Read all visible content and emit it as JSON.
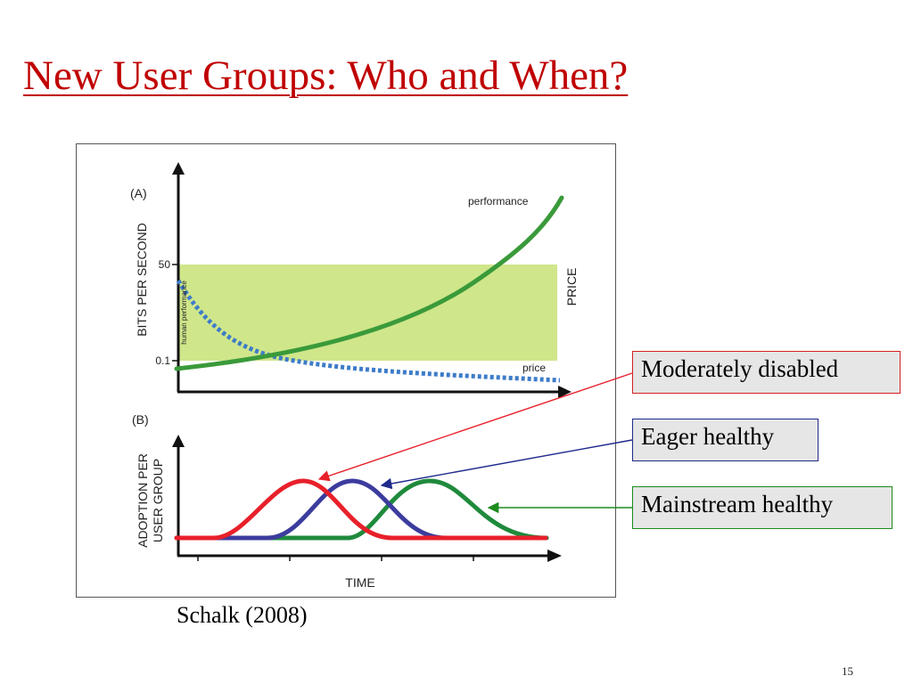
{
  "slide": {
    "title": "New User Groups: Who and When?",
    "citation": "Schalk (2008)",
    "page_number": "15"
  },
  "panel_a": {
    "panel_label": "(A)",
    "y_axis_label": "BITS PER SECOND",
    "right_axis_label": "PRICE",
    "x_axis_label": "",
    "y_tick_high": "50",
    "y_tick_low": "0.1",
    "band_label": "human performance",
    "performance_label": "performance",
    "price_label": "price"
  },
  "panel_b": {
    "panel_label": "(B)",
    "y_axis_label_line1": "ADOPTION PER",
    "y_axis_label_line2": "USER GROUP",
    "x_axis_label": "TIME"
  },
  "callouts": {
    "moderately_disabled": "Moderately disabled",
    "eager_healthy": "Eager healthy",
    "mainstream_healthy": "Mainstream healthy"
  },
  "colors": {
    "title": "#c00000",
    "performance_curve": "#3a9a3a",
    "price_curve": "#3d7cc9",
    "human_performance_band": "#cfe68a",
    "moderately_disabled": "#e8202a",
    "eager_healthy": "#3c3c9e",
    "mainstream_healthy": "#1f8a3c"
  }
}
